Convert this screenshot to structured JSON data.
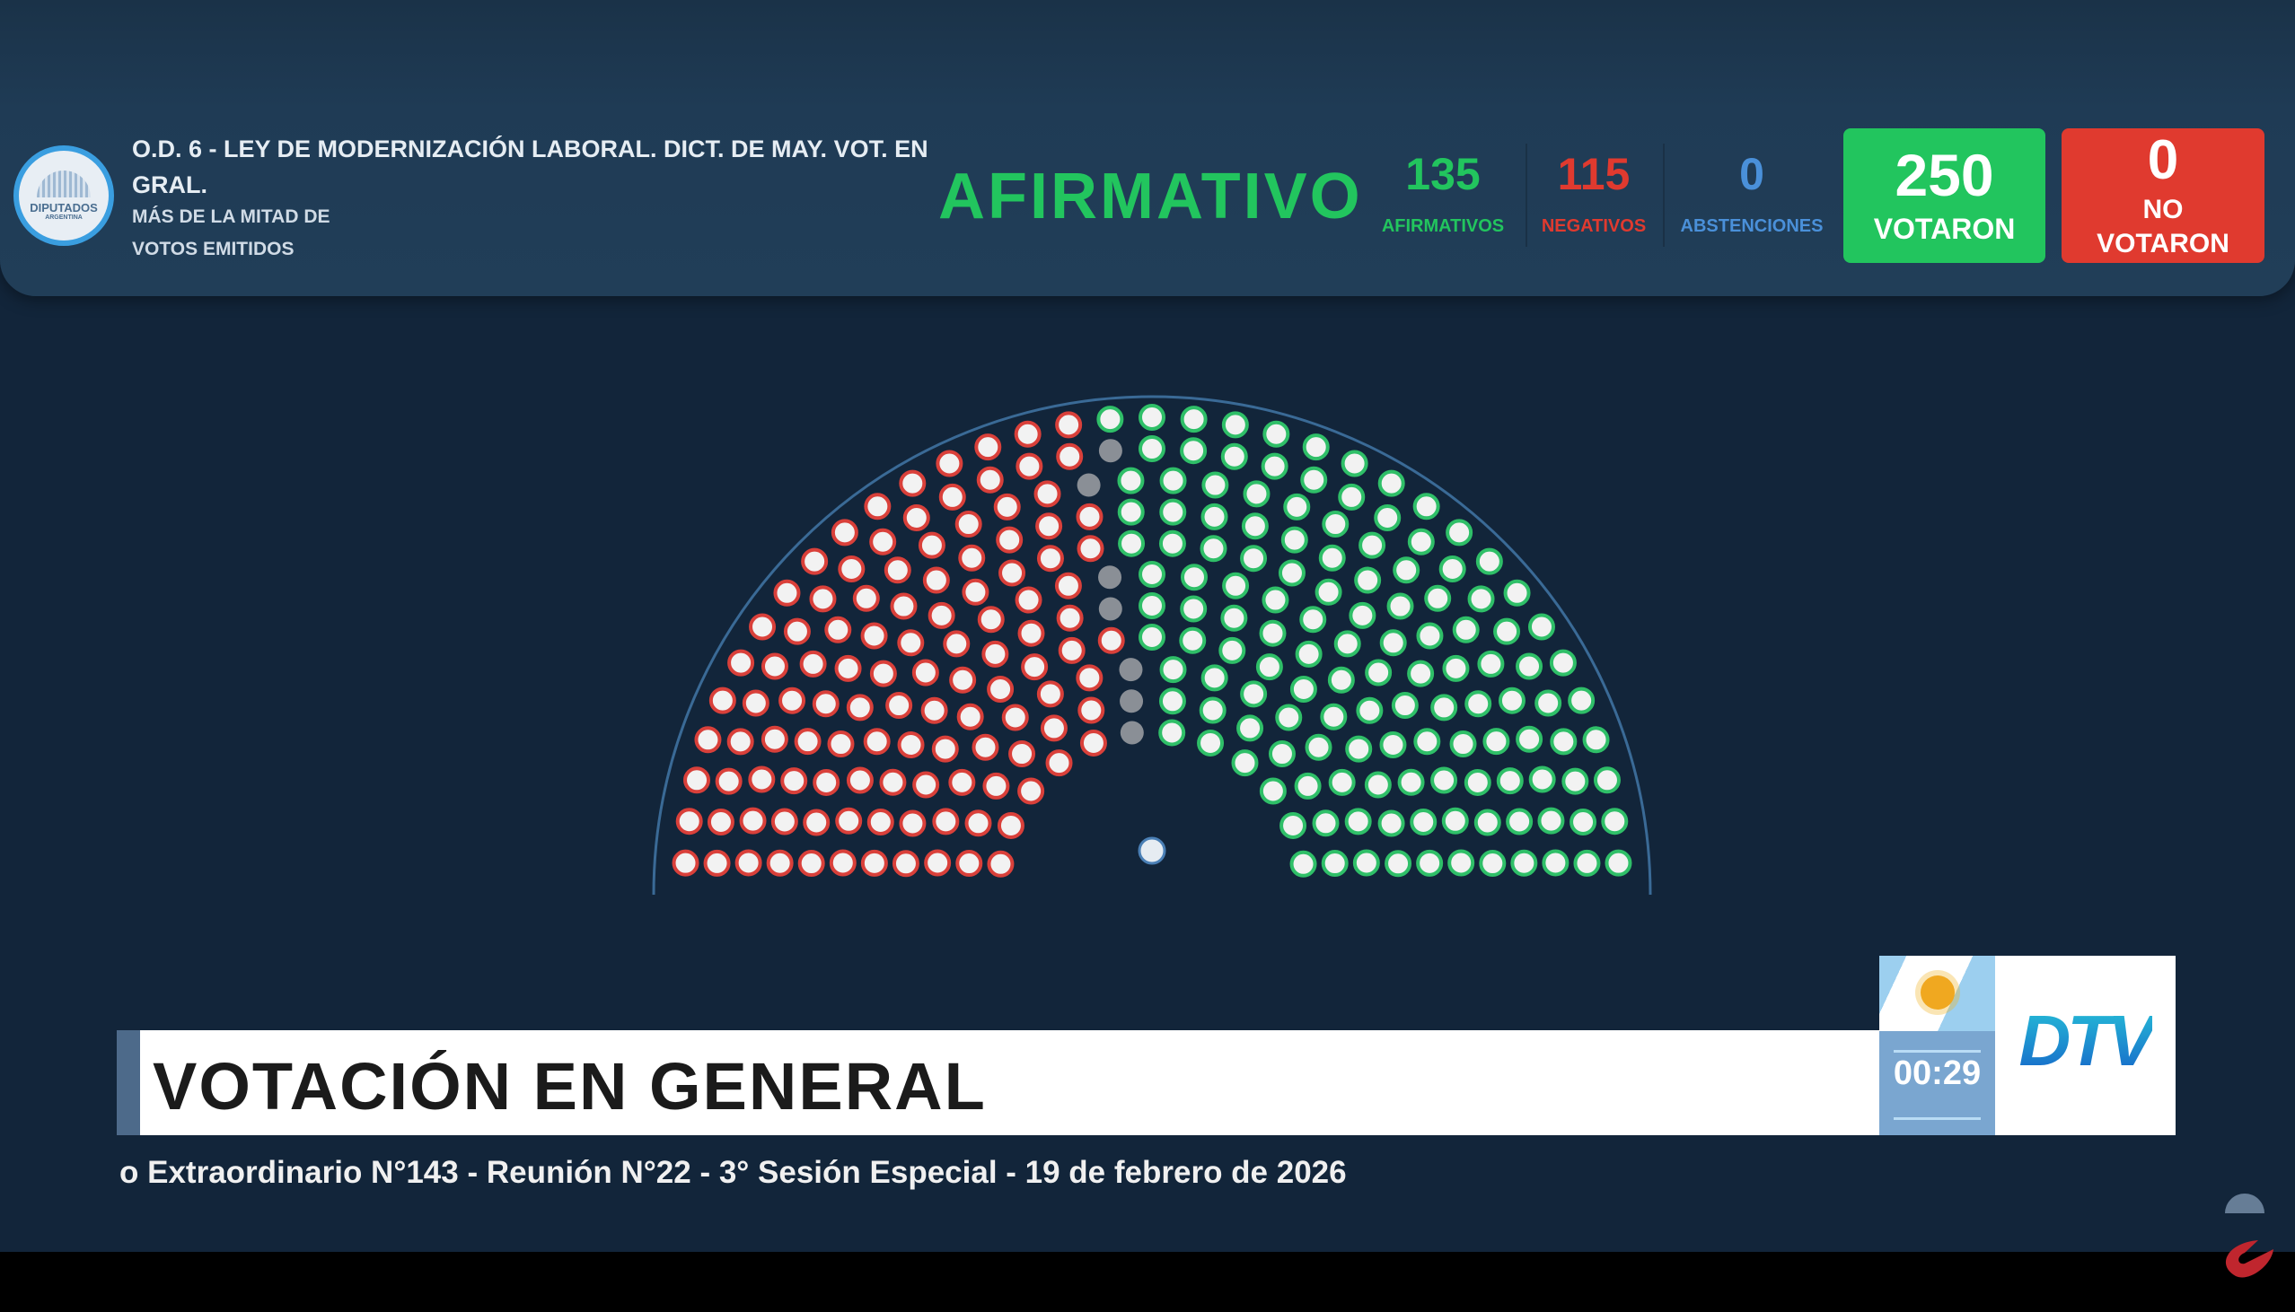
{
  "header": {
    "logo_text": "DIPUTADOS",
    "logo_subtext": "ARGENTINA",
    "title": "O.D. 6 - LEY DE MODERNIZACIÓN LABORAL. DICT. DE MAY. VOT. EN GRAL.",
    "subtitle_line1": "MÁS DE LA MITAD DE",
    "subtitle_line2": "VOTOS EMITIDOS",
    "result": "AFIRMATIVO",
    "counts": {
      "afirmativos": {
        "value": "135",
        "label": "AFIRMATIVOS"
      },
      "negativos": {
        "value": "115",
        "label": "NEGATIVOS"
      },
      "abstenciones": {
        "value": "0",
        "label": "ABSTENCIONES"
      },
      "votaron": {
        "value": "250",
        "label": "VOTARON"
      },
      "no_votaron": {
        "value": "0",
        "label_line1": "NO",
        "label_line2": "VOTARON"
      }
    }
  },
  "hemicycle": {
    "seats_affirmative": 135,
    "seats_negative": 115,
    "seats_empty": 7,
    "colors": {
      "affirmative": "#2fbf68",
      "negative": "#d9403a",
      "empty": "#8a8f96",
      "president": "#e6ecf2"
    }
  },
  "lower_third": {
    "title": "VOTACIÓN EN GENERAL",
    "timer": "00:29",
    "channel_logo": "DTV",
    "ticker": "o Extraordinario N°143 - Reunión N°22 - 3° Sesión Especial - 19 de febrero de 2026"
  },
  "colors": {
    "green": "#22c55e",
    "red": "#e03a2f",
    "blue": "#4a90d9",
    "background": "#12253a"
  }
}
